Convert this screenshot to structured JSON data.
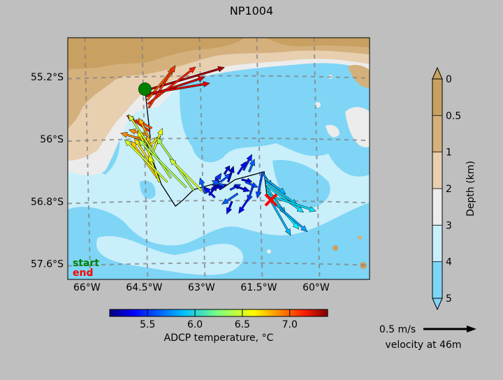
{
  "title": "NP1004",
  "chart_data": {
    "type": "scatter",
    "title": "NP1004",
    "map": {
      "xlim": [
        -66.5,
        -58.6
      ],
      "ylim": [
        -57.8,
        -54.7
      ],
      "x_ticks": [
        {
          "value": -66,
          "label": "66°W"
        },
        {
          "value": -64.5,
          "label": "64.5°W"
        },
        {
          "value": -63,
          "label": "63°W"
        },
        {
          "value": -61.5,
          "label": "61.5°W"
        },
        {
          "value": -60,
          "label": "60°W"
        }
      ],
      "y_ticks": [
        {
          "value": -55.2,
          "label": "55.2°S"
        },
        {
          "value": -56,
          "label": "56°S"
        },
        {
          "value": -56.8,
          "label": "56.8°S"
        },
        {
          "value": -57.6,
          "label": "57.6°S"
        }
      ],
      "graticule": "dashed grey",
      "start_point": [
        -64.48,
        -55.36
      ],
      "end_point": [
        -61.18,
        -56.78
      ],
      "ship_track": [
        [
          -64.48,
          -55.36
        ],
        [
          -64.34,
          -55.98
        ],
        [
          -64.47,
          -56.01
        ],
        [
          -64.05,
          -56.58
        ],
        [
          -63.68,
          -56.86
        ],
        [
          -63.48,
          -56.78
        ],
        [
          -63.21,
          -56.65
        ],
        [
          -62.71,
          -56.58
        ],
        [
          -62.45,
          -56.63
        ],
        [
          -62.12,
          -56.52
        ],
        [
          -61.36,
          -56.42
        ],
        [
          -61.28,
          -56.75
        ],
        [
          -61.18,
          -56.78
        ]
      ]
    },
    "legend": {
      "start_label": "start",
      "end_label": "end",
      "start_color": "#008000",
      "end_color": "#ff0000"
    },
    "bathymetry_colorbar": {
      "label": "Depth (km)",
      "ticks": [
        "0",
        "0.5",
        "1",
        "2",
        "3",
        "4",
        "5"
      ],
      "colors": [
        "#c7a062",
        "#d4b07c",
        "#e7cfb0",
        "#ececec",
        "#c9effb",
        "#7fd5f5"
      ]
    },
    "temperature_colorbar": {
      "label": "ADCP temperature, °C",
      "range": [
        5.1,
        7.4
      ],
      "ticks": [
        {
          "value": 5.5,
          "label": "5.5"
        },
        {
          "value": 6.0,
          "label": "6.0"
        },
        {
          "value": 6.5,
          "label": "6.5"
        },
        {
          "value": 7.0,
          "label": "7.0"
        }
      ],
      "colormap": "jet"
    },
    "velocity_scale": {
      "label": "0.5 m/s",
      "speed": 0.5,
      "caption": "velocity at 46m"
    },
    "vectors": [
      {
        "lon": -64.48,
        "lat": -55.38,
        "u": 0.75,
        "v": 0.22,
        "temp": 7.3
      },
      {
        "lon": -64.44,
        "lat": -55.45,
        "u": 0.55,
        "v": 0.18,
        "temp": 7.2
      },
      {
        "lon": -64.4,
        "lat": -55.55,
        "u": 0.45,
        "v": 0.35,
        "temp": 7.05
      },
      {
        "lon": -64.42,
        "lat": -55.5,
        "u": 0.25,
        "v": 0.3,
        "temp": 6.9
      },
      {
        "lon": -64.38,
        "lat": -55.6,
        "u": 0.25,
        "v": 0.4,
        "temp": 7.0
      },
      {
        "lon": -64.45,
        "lat": -55.42,
        "u": 0.6,
        "v": 0.1,
        "temp": 7.15
      },
      {
        "lon": -64.3,
        "lat": -55.86,
        "u": -0.15,
        "v": 0.08,
        "temp": 6.9
      },
      {
        "lon": -64.35,
        "lat": -55.9,
        "u": -0.22,
        "v": 0.15,
        "temp": 7.05
      },
      {
        "lon": -64.4,
        "lat": -55.95,
        "u": -0.18,
        "v": 0.05,
        "temp": 6.8
      },
      {
        "lon": -64.36,
        "lat": -56.0,
        "u": -0.1,
        "v": 0.2,
        "temp": 6.7
      },
      {
        "lon": -64.4,
        "lat": -56.05,
        "u": -0.05,
        "v": 0.03,
        "temp": 6.6
      },
      {
        "lon": -64.42,
        "lat": -56.02,
        "u": -0.25,
        "v": 0.07,
        "temp": 6.8
      },
      {
        "lon": -64.3,
        "lat": -56.1,
        "u": -0.05,
        "v": 0.1,
        "temp": 6.7
      },
      {
        "lon": -64.4,
        "lat": -56.1,
        "u": 0.12,
        "v": 0.1,
        "temp": 6.6
      },
      {
        "lon": -64.3,
        "lat": -56.2,
        "u": 0.1,
        "v": 0.25,
        "temp": 6.5
      },
      {
        "lon": -64.25,
        "lat": -56.3,
        "u": -0.15,
        "v": 0.3,
        "temp": 6.55
      },
      {
        "lon": -64.2,
        "lat": -56.4,
        "u": -0.2,
        "v": 0.3,
        "temp": 6.6
      },
      {
        "lon": -64.15,
        "lat": -56.5,
        "u": -0.25,
        "v": 0.35,
        "temp": 6.65
      },
      {
        "lon": -64.1,
        "lat": -56.55,
        "u": -0.1,
        "v": 0.25,
        "temp": 6.5
      },
      {
        "lon": -63.9,
        "lat": -56.55,
        "u": -0.4,
        "v": 0.4,
        "temp": 6.45
      },
      {
        "lon": -63.8,
        "lat": -56.5,
        "u": -0.4,
        "v": 0.6,
        "temp": 6.4
      },
      {
        "lon": -63.4,
        "lat": -56.62,
        "u": -0.45,
        "v": 0.45,
        "temp": 6.35
      },
      {
        "lon": -63.2,
        "lat": -56.66,
        "u": -0.35,
        "v": 0.5,
        "temp": 6.35
      },
      {
        "lon": -63.0,
        "lat": -56.66,
        "u": -0.3,
        "v": 0.3,
        "temp": 6.45
      },
      {
        "lon": -62.9,
        "lat": -56.7,
        "u": -0.05,
        "v": 0.15,
        "temp": 5.6
      },
      {
        "lon": -62.8,
        "lat": -56.72,
        "u": 0.08,
        "v": 0.1,
        "temp": 5.3
      },
      {
        "lon": -62.75,
        "lat": -56.65,
        "u": 0.15,
        "v": 0.05,
        "temp": 5.35
      },
      {
        "lon": -62.7,
        "lat": -56.6,
        "u": 0.08,
        "v": 0.12,
        "temp": 5.5
      },
      {
        "lon": -62.65,
        "lat": -56.75,
        "u": -0.1,
        "v": 0.1,
        "temp": 5.4
      },
      {
        "lon": -62.5,
        "lat": -56.65,
        "u": -0.05,
        "v": 0.12,
        "temp": 5.35
      },
      {
        "lon": -62.5,
        "lat": -56.55,
        "u": 0.1,
        "v": 0.08,
        "temp": 5.55
      },
      {
        "lon": -62.4,
        "lat": -56.6,
        "u": -0.12,
        "v": 0.05,
        "temp": 5.6
      },
      {
        "lon": -62.4,
        "lat": -56.45,
        "u": 0.05,
        "v": 0.08,
        "temp": 5.3
      },
      {
        "lon": -62.3,
        "lat": -56.55,
        "u": 0.05,
        "v": 0.15,
        "temp": 5.25
      },
      {
        "lon": -62.25,
        "lat": -56.65,
        "u": 0.1,
        "v": 0.05,
        "temp": 5.5
      },
      {
        "lon": -62.2,
        "lat": -56.8,
        "u": -0.05,
        "v": -0.12,
        "temp": 5.35
      },
      {
        "lon": -62.15,
        "lat": -56.6,
        "u": 0.15,
        "v": -0.05,
        "temp": 5.3
      },
      {
        "lon": -62.05,
        "lat": -56.7,
        "u": -0.15,
        "v": -0.1,
        "temp": 5.6
      },
      {
        "lon": -62.05,
        "lat": -56.45,
        "u": 0.08,
        "v": 0.12,
        "temp": 5.4
      },
      {
        "lon": -61.95,
        "lat": -56.52,
        "u": 0.1,
        "v": -0.02,
        "temp": 5.35
      },
      {
        "lon": -61.9,
        "lat": -56.4,
        "u": 0.08,
        "v": 0.15,
        "temp": 5.45
      },
      {
        "lon": -61.85,
        "lat": -56.55,
        "u": 0.12,
        "v": -0.05,
        "temp": 5.55
      },
      {
        "lon": -61.75,
        "lat": -56.42,
        "u": 0.05,
        "v": 0.12,
        "temp": 5.6
      },
      {
        "lon": -61.75,
        "lat": -56.75,
        "u": -0.1,
        "v": -0.15,
        "temp": 5.4
      },
      {
        "lon": -61.65,
        "lat": -56.6,
        "u": -0.05,
        "v": -0.15,
        "temp": 5.5
      },
      {
        "lon": -61.4,
        "lat": -56.42,
        "u": -0.05,
        "v": -0.25,
        "temp": 5.55
      },
      {
        "lon": -61.38,
        "lat": -56.45,
        "u": 0.08,
        "v": -0.12,
        "temp": 5.7
      },
      {
        "lon": -61.35,
        "lat": -56.5,
        "u": 0.2,
        "v": -0.15,
        "temp": 5.8
      },
      {
        "lon": -61.32,
        "lat": -56.55,
        "u": 0.3,
        "v": -0.22,
        "temp": 5.85
      },
      {
        "lon": -61.3,
        "lat": -56.6,
        "u": 0.35,
        "v": -0.25,
        "temp": 5.9
      },
      {
        "lon": -61.3,
        "lat": -56.62,
        "u": 0.18,
        "v": -0.25,
        "temp": 5.85
      },
      {
        "lon": -61.28,
        "lat": -56.68,
        "u": 0.3,
        "v": -0.35,
        "temp": 5.95
      },
      {
        "lon": -61.25,
        "lat": -56.72,
        "u": 0.45,
        "v": -0.15,
        "temp": 5.9
      },
      {
        "lon": -61.22,
        "lat": -56.76,
        "u": 0.2,
        "v": -0.35,
        "temp": 5.8
      },
      {
        "lon": -61.2,
        "lat": -56.78,
        "u": 0.35,
        "v": -0.3,
        "temp": 5.75
      }
    ]
  }
}
